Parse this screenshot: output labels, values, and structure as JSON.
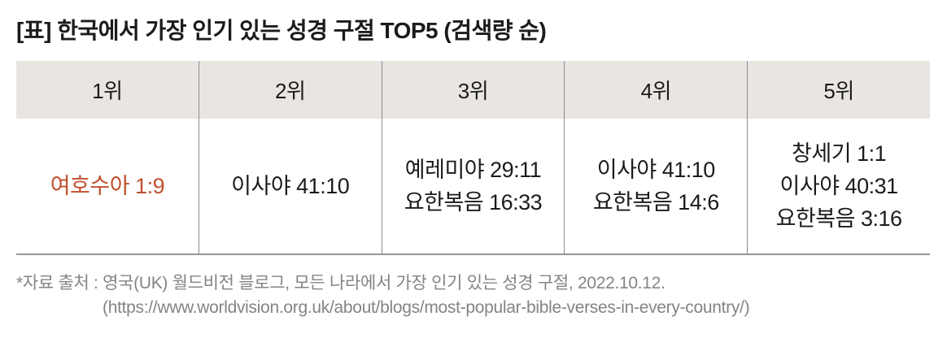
{
  "page": {
    "title": "[표] 한국에서 가장 인기 있는 성경 구절 TOP5 (검색량 순)"
  },
  "table": {
    "columns": [
      {
        "rank": "1위",
        "verses": [
          "여호수아 1:9"
        ],
        "highlighted": true
      },
      {
        "rank": "2위",
        "verses": [
          "이사야 41:10"
        ],
        "highlighted": false
      },
      {
        "rank": "3위",
        "verses": [
          "예레미야 29:11",
          "요한복음 16:33"
        ],
        "highlighted": false
      },
      {
        "rank": "4위",
        "verses": [
          "이사야 41:10",
          "요한복음 14:6"
        ],
        "highlighted": false
      },
      {
        "rank": "5위",
        "verses": [
          "창세기 1:1",
          "이사야 40:31",
          "요한복음 3:16"
        ],
        "highlighted": false
      }
    ]
  },
  "footer": {
    "source_line": "*자료 출처 : 영국(UK) 월드비전 블로그, 모든 나라에서 가장 인기 있는 성경 구절, 2022.10.12.",
    "url_line": "(https://www.worldvision.org.uk/about/blogs/most-popular-bible-verses-in-every-country/)"
  },
  "colors": {
    "header_bg": "#e9e6e2",
    "divider": "#8d8d8d",
    "bottom_border": "#979797",
    "highlight_text": "#c0502c",
    "body_text": "#1b1b1b",
    "footer_text": "#848484"
  },
  "chart_data": {
    "type": "table",
    "title": "[표] 한국에서 가장 인기 있는 성경 구절 TOP5 (검색량 순)",
    "columns": [
      "1위",
      "2위",
      "3위",
      "4위",
      "5위"
    ],
    "rows": [
      [
        "여호수아 1:9",
        "이사야 41:10",
        "예레미야 29:11 / 요한복음 16:33",
        "이사야 41:10 / 요한복음 14:6",
        "창세기 1:1 / 이사야 40:31 / 요한복음 3:16"
      ]
    ],
    "annotations": [
      "*자료 출처 : 영국(UK) 월드비전 블로그, 모든 나라에서 가장 인기 있는 성경 구절, 2022.10.12.",
      "(https://www.worldvision.org.uk/about/blogs/most-popular-bible-verses-in-every-country/)"
    ],
    "layout_hints": {
      "header_background": "#e9e6e2",
      "rank1_text_color": "#c0502c",
      "grid": "internal vertical dividers + bottom border only"
    }
  }
}
